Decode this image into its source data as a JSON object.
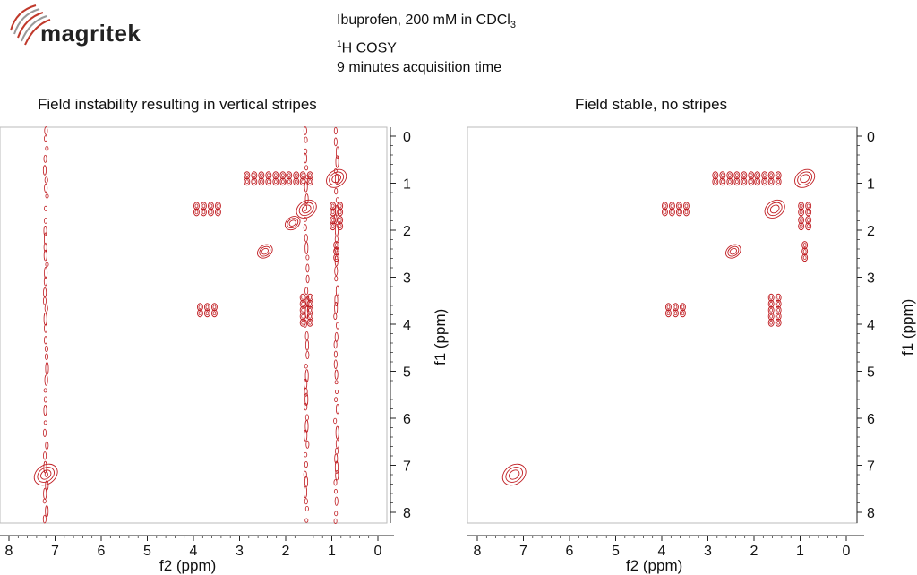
{
  "brand": {
    "name": "magritek"
  },
  "header": {
    "line1": "Ibuprofen, 200 mM in CDCl",
    "line1_sub": "3",
    "line2_sup": "1",
    "line2": "H COSY",
    "line3": "9 minutes acquisition time"
  },
  "colors": {
    "contour": "#c01d22",
    "axis": "#222222",
    "logo_accent": "#c0392b"
  },
  "chart_data": [
    {
      "type": "contour-2d",
      "title": "Field instability resulting in vertical stripes",
      "xlabel": "f2 (ppm)",
      "ylabel": "f1 (ppm)",
      "xlim": [
        8.2,
        -0.2
      ],
      "ylim": [
        -0.2,
        8.2
      ],
      "x_ticks": [
        "8",
        "7",
        "6",
        "5",
        "4",
        "3",
        "2",
        "1",
        "0"
      ],
      "y_ticks": [
        "0",
        "1",
        "2",
        "3",
        "4",
        "5",
        "6",
        "7",
        "8"
      ],
      "diagonal_peaks": [
        {
          "x": 7.2,
          "y": 7.2
        },
        {
          "x": 3.7,
          "y": 3.7
        },
        {
          "x": 2.45,
          "y": 2.45
        },
        {
          "x": 1.85,
          "y": 1.85
        },
        {
          "x": 1.55,
          "y": 1.55
        },
        {
          "x": 0.9,
          "y": 0.9
        }
      ],
      "cross_peaks": [
        {
          "x": 3.7,
          "y": 1.55
        },
        {
          "x": 1.55,
          "y": 3.7
        },
        {
          "x": 2.45,
          "y": 0.9
        },
        {
          "x": 0.9,
          "y": 2.45
        },
        {
          "x": 1.85,
          "y": 0.9
        },
        {
          "x": 0.9,
          "y": 1.85
        },
        {
          "x": 1.55,
          "y": 0.9
        },
        {
          "x": 0.9,
          "y": 1.55
        }
      ],
      "stripes_f2": [
        7.2,
        1.55,
        0.9
      ]
    },
    {
      "type": "contour-2d",
      "title": "Field stable, no stripes",
      "xlabel": "f2 (ppm)",
      "ylabel": "f1 (ppm)",
      "xlim": [
        8.2,
        -0.2
      ],
      "ylim": [
        -0.2,
        8.2
      ],
      "x_ticks": [
        "8",
        "7",
        "6",
        "5",
        "4",
        "3",
        "2",
        "1",
        "0"
      ],
      "y_ticks": [
        "0",
        "1",
        "2",
        "3",
        "4",
        "5",
        "6",
        "7",
        "8"
      ],
      "diagonal_peaks": [
        {
          "x": 7.2,
          "y": 7.2
        },
        {
          "x": 3.7,
          "y": 3.7
        },
        {
          "x": 2.45,
          "y": 2.45
        },
        {
          "x": 1.55,
          "y": 1.55
        },
        {
          "x": 0.9,
          "y": 0.9
        }
      ],
      "cross_peaks": [
        {
          "x": 3.7,
          "y": 1.55
        },
        {
          "x": 1.55,
          "y": 3.7
        },
        {
          "x": 2.45,
          "y": 0.9
        },
        {
          "x": 0.9,
          "y": 2.45
        },
        {
          "x": 1.55,
          "y": 0.9
        },
        {
          "x": 0.9,
          "y": 1.55
        },
        {
          "x": 1.85,
          "y": 0.9
        },
        {
          "x": 0.9,
          "y": 1.85
        }
      ],
      "stripes_f2": []
    }
  ]
}
